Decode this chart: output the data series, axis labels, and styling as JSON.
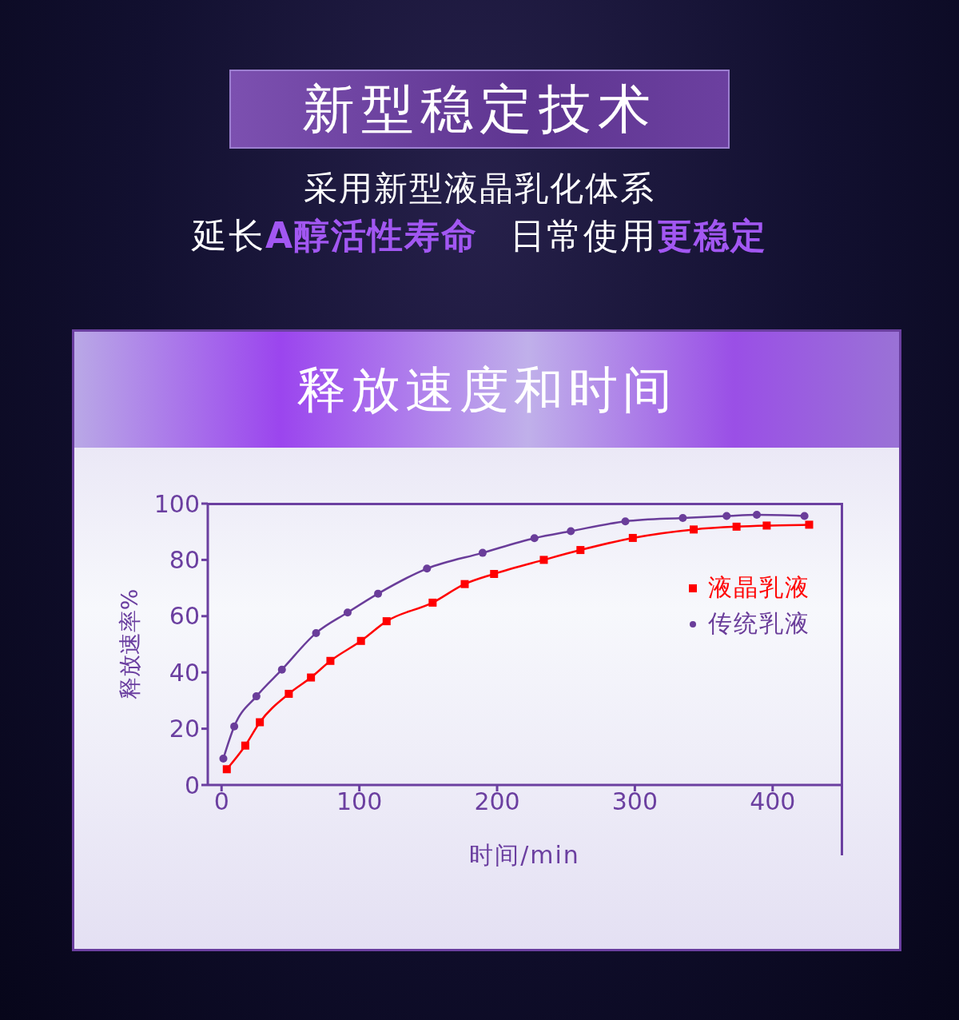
{
  "chart_data": {
    "type": "line",
    "title": "释放速度和时间",
    "subtitle": "新型稳定技术",
    "annotations": [
      "采用新型液晶乳化体系",
      "延长",
      "A醇活性寿命",
      "日常使用",
      "更稳定"
    ],
    "xlabel": "时间/min",
    "ylabel": "释放速率%",
    "xlim": [
      -10,
      450
    ],
    "xticks": [
      0,
      100,
      200,
      300,
      400
    ],
    "ylim": [
      0,
      100
    ],
    "yticks": [
      0,
      20,
      40,
      60,
      80,
      100
    ],
    "grid": false,
    "legend": "top right",
    "series": [
      {
        "name": "液晶乳液",
        "color": "#ff0000",
        "marker": "square",
        "x": [
          3.8,
          17.2,
          27.8,
          48.8,
          64.9,
          79.0,
          101.2,
          119.8,
          153.2,
          176.5,
          197.8,
          233.9,
          260.5,
          298.5,
          342.7,
          373.8,
          395.7,
          426.5
        ],
        "values": [
          5.6,
          14.0,
          22.3,
          32.4,
          38.2,
          44.1,
          51.2,
          58.2,
          64.8,
          71.4,
          75.0,
          80.0,
          83.5,
          87.8,
          90.8,
          91.8,
          92.2,
          92.5
        ]
      },
      {
        "name": "传统乳液",
        "color": "#6a3d9a",
        "marker": "circle",
        "x": [
          1.3,
          9.2,
          25.3,
          43.8,
          68.6,
          91.5,
          113.6,
          149.1,
          189.5,
          227.1,
          253.5,
          293.1,
          334.8,
          366.6,
          388.5,
          423.1
        ],
        "values": [
          9.4,
          20.8,
          31.5,
          41.0,
          54.0,
          61.3,
          68.0,
          76.9,
          82.5,
          87.7,
          90.2,
          93.7,
          94.9,
          95.6,
          96.0,
          95.6
        ]
      }
    ]
  }
}
